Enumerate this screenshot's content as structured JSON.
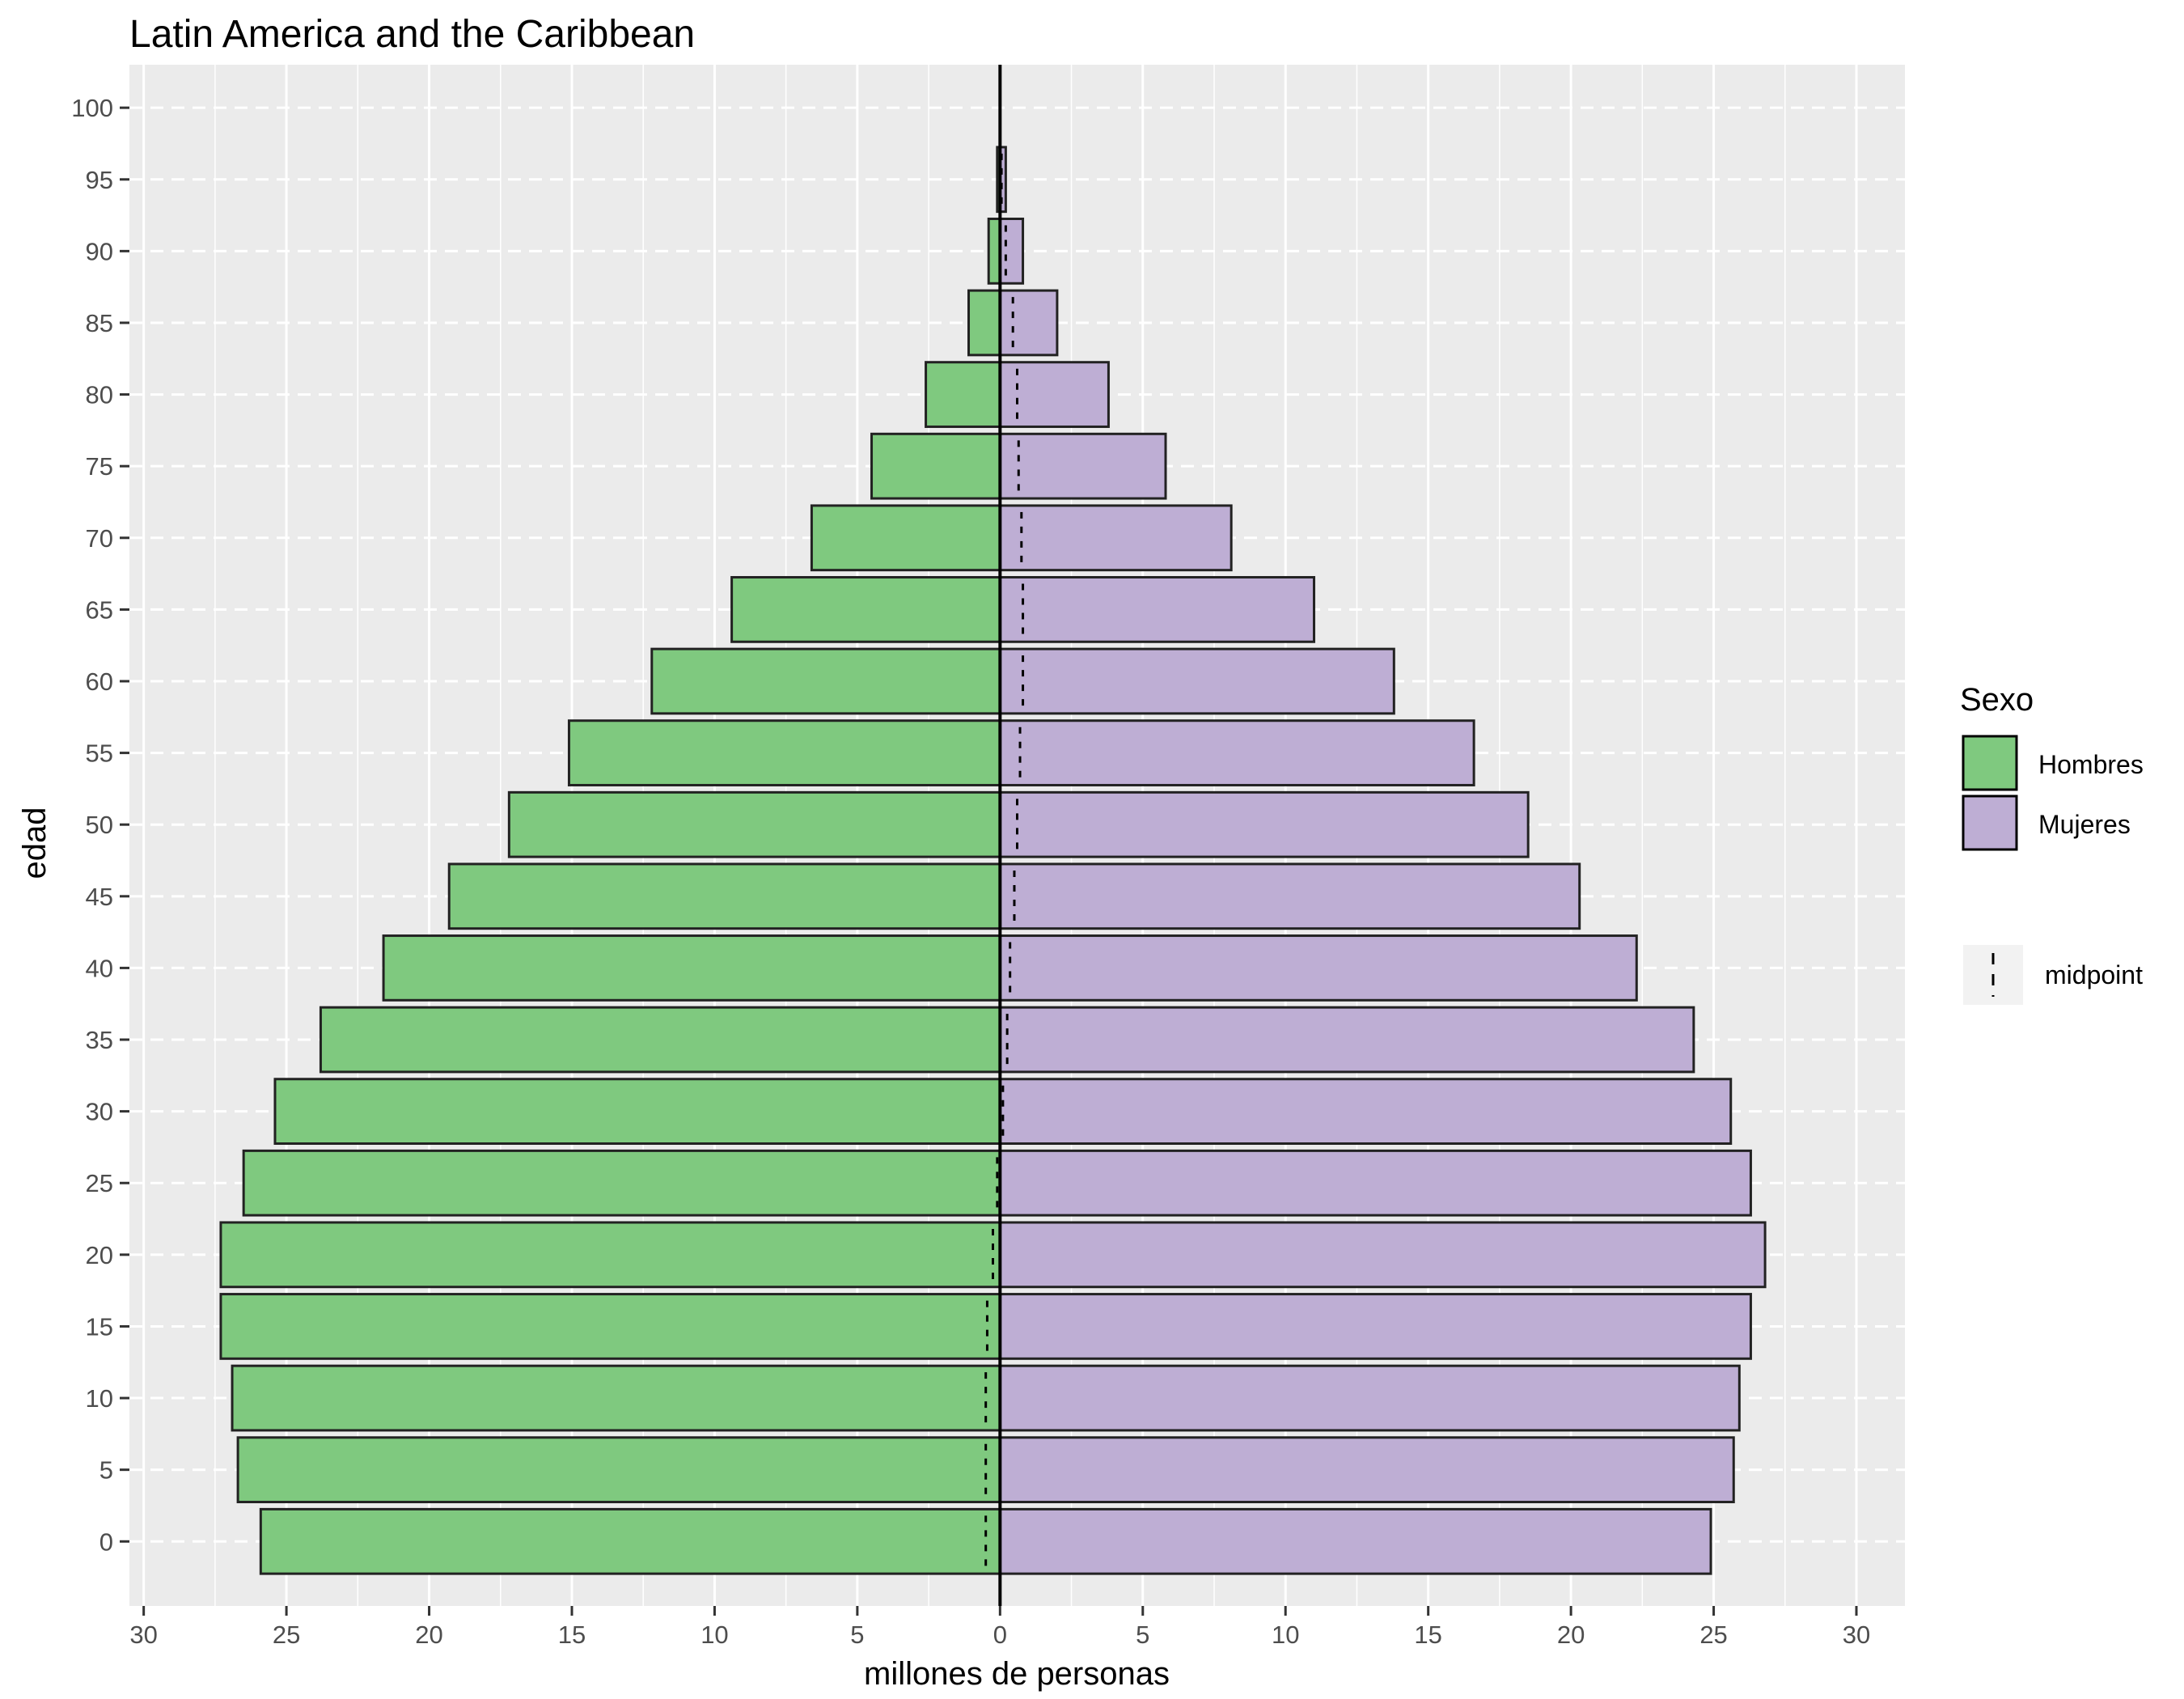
{
  "chart_data": {
    "type": "bar",
    "orientation": "horizontal",
    "title": "Latin America and the Caribbean",
    "xlabel": "millones de personas",
    "ylabel": "edad",
    "xlim": [
      -30.5,
      31.7
    ],
    "ylim": [
      -4.5,
      103
    ],
    "x_ticks": [
      -30,
      -25,
      -20,
      -15,
      -10,
      -5,
      0,
      5,
      10,
      15,
      20,
      25,
      30
    ],
    "x_tick_labels": [
      "30",
      "25",
      "20",
      "15",
      "10",
      "5",
      "0",
      "5",
      "10",
      "15",
      "20",
      "25",
      "30"
    ],
    "y_ticks": [
      0,
      5,
      10,
      15,
      20,
      25,
      30,
      35,
      40,
      45,
      50,
      55,
      60,
      65,
      70,
      75,
      80,
      85,
      90,
      95,
      100
    ],
    "y_tick_labels": [
      "0",
      "5",
      "10",
      "15",
      "20",
      "25",
      "30",
      "35",
      "40",
      "45",
      "50",
      "55",
      "60",
      "65",
      "70",
      "75",
      "80",
      "85",
      "90",
      "95",
      "100"
    ],
    "grid": true,
    "ages": [
      0,
      5,
      10,
      15,
      20,
      25,
      30,
      35,
      40,
      45,
      50,
      55,
      60,
      65,
      70,
      75,
      80,
      85,
      90,
      95
    ],
    "series": [
      {
        "name": "Hombres",
        "color": "#7fc97f",
        "values": [
          25.9,
          26.7,
          26.9,
          27.3,
          27.3,
          26.5,
          25.4,
          23.8,
          21.6,
          19.3,
          17.2,
          15.1,
          12.2,
          9.4,
          6.6,
          4.5,
          2.6,
          1.1,
          0.4,
          0.1
        ]
      },
      {
        "name": "Mujeres",
        "color": "#beaed4",
        "values": [
          24.9,
          25.7,
          25.9,
          26.3,
          26.8,
          26.3,
          25.6,
          24.3,
          22.3,
          20.3,
          18.5,
          16.6,
          13.8,
          11.0,
          8.1,
          5.8,
          3.8,
          2.0,
          0.8,
          0.2
        ]
      }
    ],
    "midpoint": {
      "name": "midpoint",
      "values": [
        -0.5,
        -0.5,
        -0.5,
        -0.45,
        -0.25,
        -0.1,
        0.1,
        0.25,
        0.35,
        0.5,
        0.6,
        0.7,
        0.8,
        0.8,
        0.75,
        0.65,
        0.6,
        0.45,
        0.2,
        0.05
      ]
    },
    "legend": {
      "title": "Sexo",
      "position": "right",
      "items": [
        "Hombres",
        "Mujeres"
      ],
      "line_item": "midpoint"
    }
  }
}
